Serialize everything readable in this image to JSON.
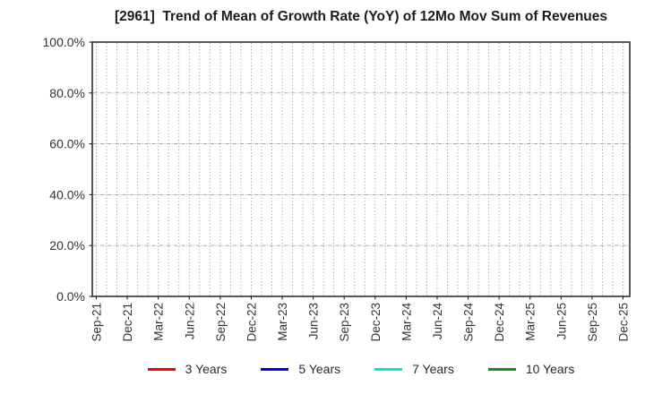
{
  "figure": {
    "title": "[2961]  Trend of Mean of Growth Rate (YoY) of 12Mo Mov Sum of Revenues"
  },
  "chart_data": {
    "type": "line",
    "title": "[2961]  Trend of Mean of Growth Rate (YoY) of 12Mo Mov Sum of Revenues",
    "x_ticklabels": [
      "Sep-21",
      "Dec-21",
      "Mar-22",
      "Jun-22",
      "Sep-22",
      "Dec-22",
      "Mar-23",
      "Jun-23",
      "Sep-23",
      "Dec-23",
      "Mar-24",
      "Jun-24",
      "Sep-24",
      "Dec-24",
      "Mar-25",
      "Jun-25",
      "Sep-25",
      "Dec-25"
    ],
    "x_minor_ticks_total": 52,
    "x_label_every_n_months": 3,
    "ylim": [
      0,
      100
    ],
    "y_ticks": [
      0,
      20,
      40,
      60,
      80,
      100
    ],
    "y_ticklabels": [
      "0.0%",
      "20.0%",
      "40.0%",
      "60.0%",
      "80.0%",
      "100.0%"
    ],
    "grid": {
      "vertical": "monthly dotted",
      "horizontal": "dashed at each 20% tick",
      "vertical_color": "#8a8a8a",
      "horizontal_color": "#9a9a9a"
    },
    "legend_position": "bottom-center",
    "series": [
      {
        "name": "3 Years",
        "color": "#ff0000",
        "values": []
      },
      {
        "name": "5 Years",
        "color": "#0000ff",
        "values": []
      },
      {
        "name": "7 Years",
        "color": "#00e5e5",
        "values": []
      },
      {
        "name": "10 Years",
        "color": "#149014",
        "values": []
      }
    ]
  }
}
